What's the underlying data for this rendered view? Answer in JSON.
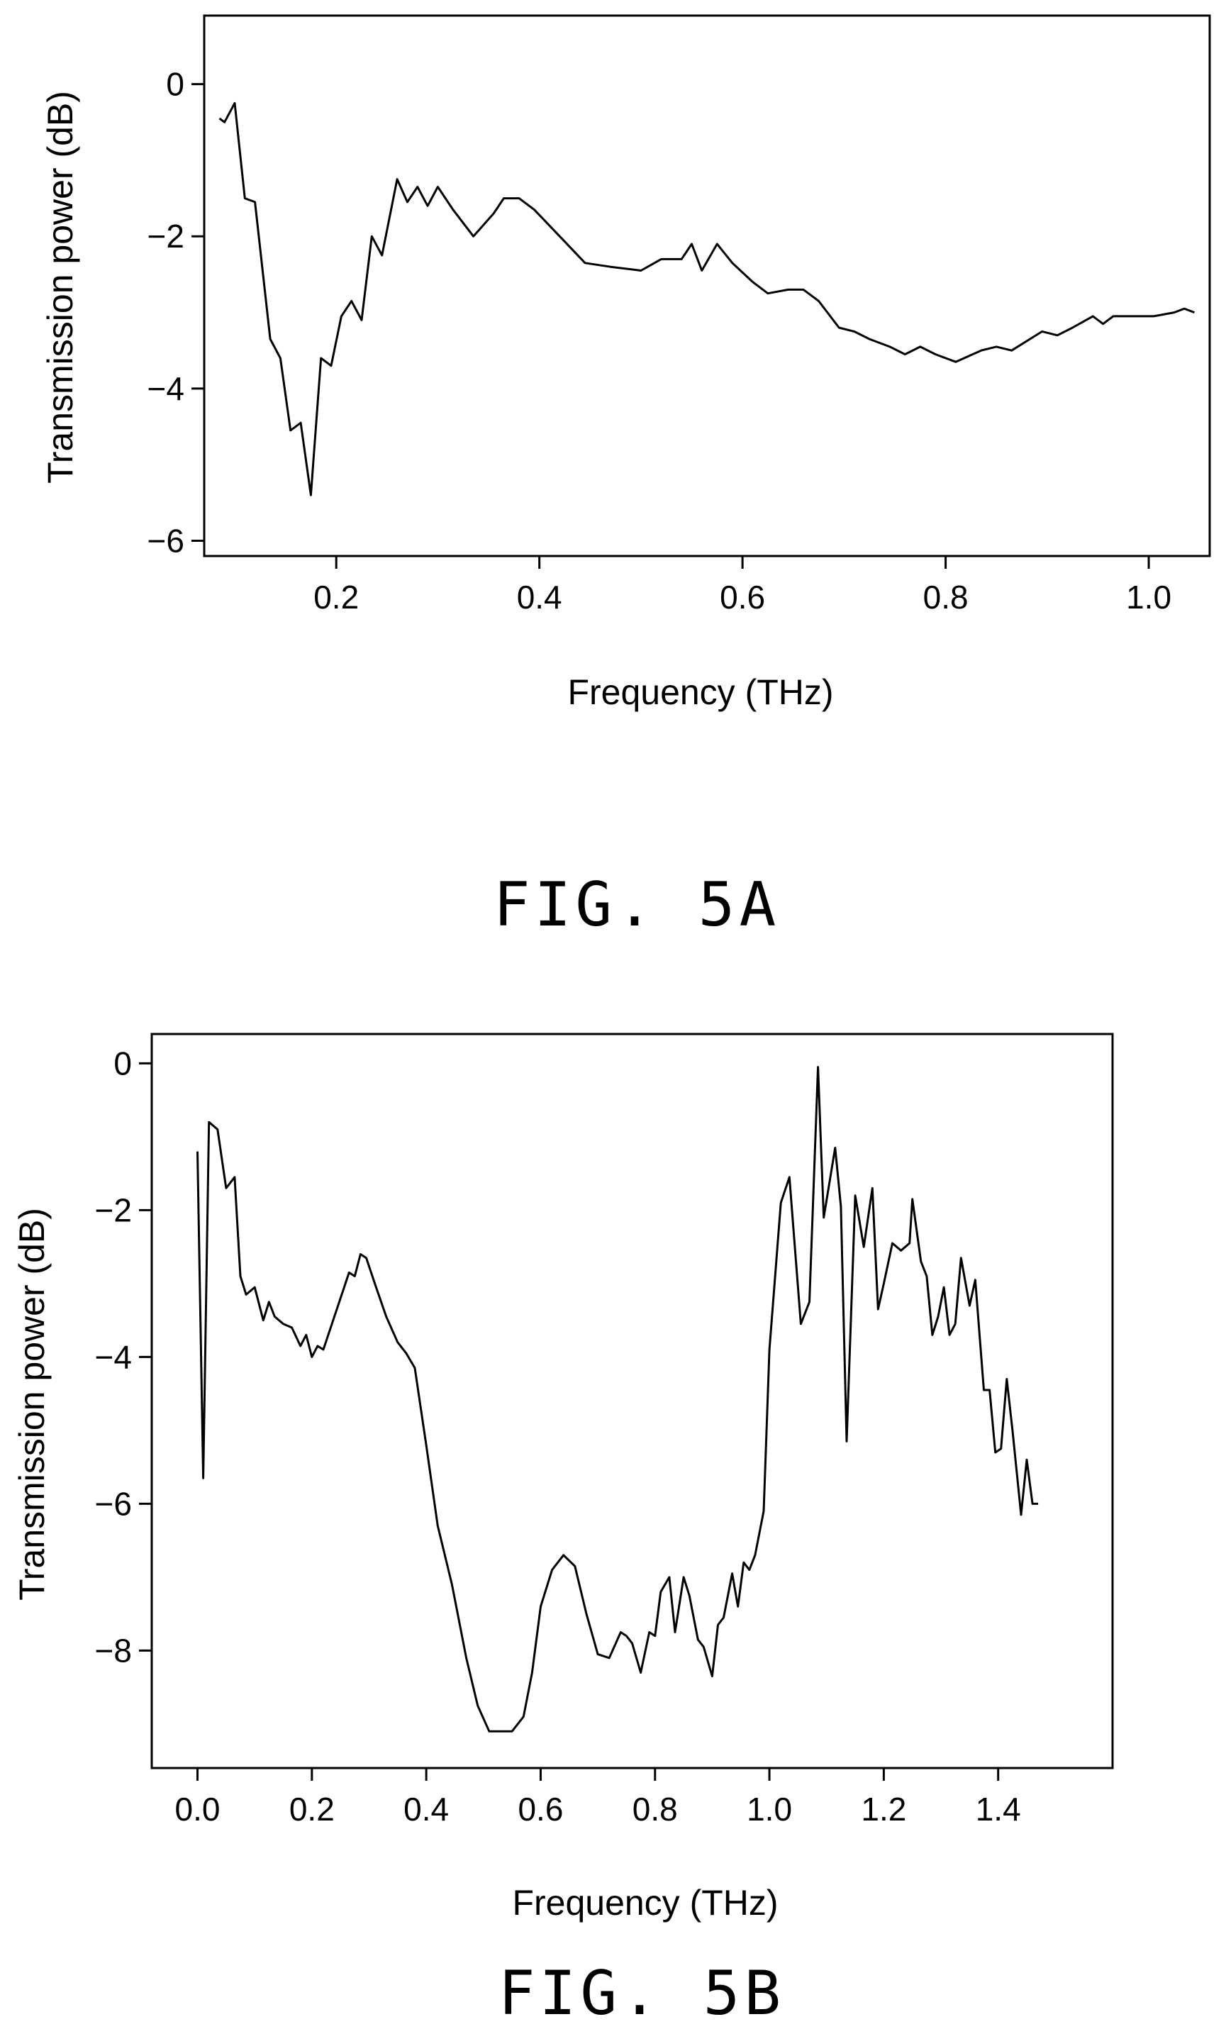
{
  "chart_data": [
    {
      "type": "line",
      "caption": "FIG. 5A",
      "xlabel": "Frequency (THz)",
      "ylabel": "Transmission power (dB)",
      "xlim": [
        0.07,
        1.06
      ],
      "ylim": [
        -6.2,
        0.9
      ],
      "xticks": [
        0.2,
        0.4,
        0.6,
        0.8,
        1.0
      ],
      "xtick_labels": [
        "0.2",
        "0.4",
        "0.6",
        "0.8",
        "1.0"
      ],
      "yticks": [
        0,
        -2,
        -4,
        -6
      ],
      "ytick_labels": [
        "0",
        "−2",
        "−4",
        "−6"
      ],
      "grid": false,
      "series": [
        {
          "x": [
            0.085,
            0.09,
            0.1,
            0.11,
            0.12,
            0.135,
            0.145,
            0.155,
            0.165,
            0.175,
            0.185,
            0.195,
            0.205,
            0.215,
            0.225,
            0.235,
            0.245,
            0.26,
            0.27,
            0.28,
            0.29,
            0.3,
            0.315,
            0.335,
            0.355,
            0.365,
            0.38,
            0.395,
            0.42,
            0.445,
            0.47,
            0.5,
            0.52,
            0.54,
            0.55,
            0.56,
            0.575,
            0.59,
            0.61,
            0.625,
            0.645,
            0.66,
            0.675,
            0.695,
            0.71,
            0.725,
            0.745,
            0.76,
            0.775,
            0.79,
            0.81,
            0.835,
            0.85,
            0.865,
            0.895,
            0.91,
            0.925,
            0.945,
            0.955,
            0.965,
            0.985,
            1.005,
            1.025,
            1.035,
            1.045
          ],
          "y": [
            -0.45,
            -0.5,
            -0.25,
            -1.5,
            -1.55,
            -3.35,
            -3.6,
            -4.55,
            -4.45,
            -5.4,
            -3.6,
            -3.7,
            -3.05,
            -2.85,
            -3.1,
            -2.0,
            -2.25,
            -1.25,
            -1.55,
            -1.35,
            -1.6,
            -1.35,
            -1.65,
            -2.0,
            -1.7,
            -1.5,
            -1.5,
            -1.65,
            -2.0,
            -2.35,
            -2.4,
            -2.45,
            -2.3,
            -2.3,
            -2.1,
            -2.45,
            -2.1,
            -2.35,
            -2.6,
            -2.75,
            -2.7,
            -2.7,
            -2.85,
            -3.2,
            -3.25,
            -3.35,
            -3.45,
            -3.55,
            -3.45,
            -3.55,
            -3.65,
            -3.5,
            -3.45,
            -3.5,
            -3.25,
            -3.3,
            -3.2,
            -3.05,
            -3.15,
            -3.05,
            -3.05,
            -3.05,
            -3.0,
            -2.95,
            -3.0
          ]
        }
      ]
    },
    {
      "type": "line",
      "caption": "FIG. 5B",
      "xlabel": "Frequency (THz)",
      "ylabel": "Transmission power (dB)",
      "xlim": [
        -0.08,
        1.6
      ],
      "ylim": [
        -9.6,
        0.4
      ],
      "xticks": [
        0.0,
        0.2,
        0.4,
        0.6,
        0.8,
        1.0,
        1.2,
        1.4
      ],
      "xtick_labels": [
        "0.0",
        "0.2",
        "0.4",
        "0.6",
        "0.8",
        "1.0",
        "1.2",
        "1.4"
      ],
      "yticks": [
        0,
        -2,
        -4,
        -6,
        -8
      ],
      "ytick_labels": [
        "0",
        "−2",
        "−4",
        "−6",
        "−8"
      ],
      "grid": false,
      "series": [
        {
          "x": [
            0.0,
            0.01,
            0.02,
            0.035,
            0.05,
            0.065,
            0.075,
            0.085,
            0.1,
            0.115,
            0.125,
            0.135,
            0.15,
            0.165,
            0.18,
            0.19,
            0.2,
            0.21,
            0.22,
            0.235,
            0.25,
            0.265,
            0.275,
            0.285,
            0.295,
            0.31,
            0.33,
            0.35,
            0.365,
            0.38,
            0.4,
            0.42,
            0.445,
            0.47,
            0.49,
            0.51,
            0.53,
            0.55,
            0.57,
            0.585,
            0.6,
            0.62,
            0.64,
            0.66,
            0.68,
            0.7,
            0.72,
            0.74,
            0.75,
            0.76,
            0.775,
            0.79,
            0.8,
            0.81,
            0.825,
            0.835,
            0.85,
            0.86,
            0.875,
            0.885,
            0.9,
            0.91,
            0.92,
            0.935,
            0.945,
            0.955,
            0.965,
            0.975,
            0.99,
            1.0,
            1.02,
            1.035,
            1.055,
            1.07,
            1.085,
            1.095,
            1.115,
            1.125,
            1.135,
            1.15,
            1.165,
            1.18,
            1.19,
            1.2,
            1.215,
            1.23,
            1.245,
            1.25,
            1.265,
            1.275,
            1.285,
            1.295,
            1.305,
            1.315,
            1.325,
            1.335,
            1.35,
            1.36,
            1.375,
            1.385,
            1.395,
            1.405,
            1.415,
            1.425,
            1.44,
            1.45,
            1.46,
            1.47
          ],
          "y": [
            -1.2,
            -5.65,
            -0.8,
            -0.9,
            -1.7,
            -1.55,
            -2.9,
            -3.15,
            -3.05,
            -3.5,
            -3.25,
            -3.45,
            -3.55,
            -3.6,
            -3.85,
            -3.7,
            -4.0,
            -3.85,
            -3.9,
            -3.55,
            -3.2,
            -2.85,
            -2.9,
            -2.6,
            -2.65,
            -3.0,
            -3.45,
            -3.8,
            -3.95,
            -4.15,
            -5.2,
            -6.3,
            -7.1,
            -8.1,
            -8.75,
            -9.1,
            -9.1,
            -9.1,
            -8.9,
            -8.3,
            -7.4,
            -6.9,
            -6.7,
            -6.85,
            -7.5,
            -8.05,
            -8.1,
            -7.75,
            -7.8,
            -7.9,
            -8.3,
            -7.75,
            -7.8,
            -7.2,
            -7.0,
            -7.75,
            -7.0,
            -7.25,
            -7.85,
            -7.95,
            -8.35,
            -7.65,
            -7.55,
            -6.95,
            -7.4,
            -6.8,
            -6.9,
            -6.7,
            -6.1,
            -3.9,
            -1.9,
            -1.55,
            -3.55,
            -3.25,
            -0.05,
            -2.1,
            -1.15,
            -1.95,
            -5.15,
            -1.8,
            -2.5,
            -1.7,
            -3.35,
            -3.0,
            -2.45,
            -2.55,
            -2.45,
            -1.85,
            -2.7,
            -2.9,
            -3.7,
            -3.45,
            -3.05,
            -3.7,
            -3.55,
            -2.65,
            -3.3,
            -2.95,
            -4.45,
            -4.45,
            -5.3,
            -5.25,
            -4.3,
            -5.0,
            -6.15,
            -5.4,
            -6.0,
            -6.0
          ]
        }
      ]
    }
  ]
}
